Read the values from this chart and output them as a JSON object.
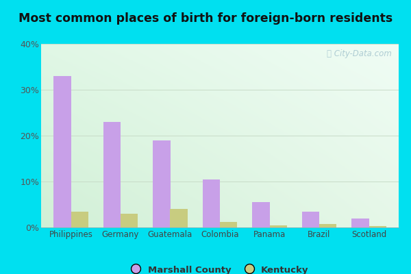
{
  "title": "Most common places of birth for foreign-born residents",
  "categories": [
    "Philippines",
    "Germany",
    "Guatemala",
    "Colombia",
    "Panama",
    "Brazil",
    "Scotland"
  ],
  "marshall_county": [
    33.0,
    23.0,
    19.0,
    10.5,
    5.5,
    3.5,
    2.0
  ],
  "kentucky": [
    3.5,
    3.0,
    4.0,
    1.2,
    0.5,
    0.8,
    0.3
  ],
  "marshall_color": "#c8a0e8",
  "kentucky_color": "#c8cc80",
  "ylim": [
    0,
    40
  ],
  "yticks": [
    0,
    10,
    20,
    30,
    40
  ],
  "bar_width": 0.35,
  "outer_color": "#00e0f0",
  "watermark": "City-Data.com",
  "legend_marshall": "Marshall County",
  "legend_kentucky": "Kentucky",
  "grid_color": "#d8ead8",
  "bg_color_topleft": "#e8f8f0",
  "bg_color_topright": "#f5fffa",
  "bg_color_bottomleft": "#d8edd8",
  "bg_color_bottomright": "#eaf5e8"
}
